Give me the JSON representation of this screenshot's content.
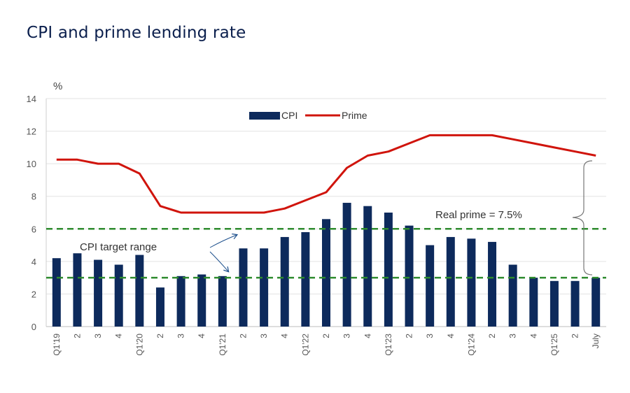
{
  "title": "CPI and prime lending rate",
  "colors": {
    "cpi": "#0d2a5c",
    "prime": "#d0140c",
    "target": "#2e8b2e",
    "grid": "#e3e3e3",
    "axis_text": "#555555",
    "annotation": "#1c4f8c"
  },
  "chart_data": {
    "type": "bar",
    "ylabel": "%",
    "ylim": [
      0,
      14
    ],
    "yticks": [
      0,
      2,
      4,
      6,
      8,
      10,
      12,
      14
    ],
    "grid": true,
    "legend_position": "top-center",
    "categories": [
      "Q1'19",
      "2",
      "3",
      "4",
      "Q1'20",
      "2",
      "3",
      "4",
      "Q1'21",
      "2",
      "3",
      "4",
      "Q1'22",
      "2",
      "3",
      "4",
      "Q1'23",
      "2",
      "3",
      "4",
      "Q1'24",
      "2",
      "3",
      "4",
      "Q1'25",
      "2",
      "July"
    ],
    "series": [
      {
        "name": "CPI",
        "type": "bar",
        "values": [
          4.2,
          4.5,
          4.1,
          3.8,
          4.4,
          2.4,
          3.1,
          3.2,
          3.1,
          4.8,
          4.8,
          5.5,
          5.8,
          6.6,
          7.6,
          7.4,
          7.0,
          6.2,
          5.0,
          5.5,
          5.4,
          5.2,
          3.8,
          3.0,
          2.8,
          2.8,
          3.0
        ]
      },
      {
        "name": "Prime",
        "type": "line",
        "values": [
          10.25,
          10.25,
          10.0,
          10.0,
          9.4,
          7.4,
          7.0,
          7.0,
          7.0,
          7.0,
          7.0,
          7.25,
          7.75,
          8.25,
          9.75,
          10.5,
          10.75,
          11.25,
          11.75,
          11.75,
          11.75,
          11.75,
          11.5,
          11.25,
          11.0,
          10.75,
          10.5
        ]
      }
    ],
    "reference_lines": [
      {
        "y": 6,
        "style": "dashed"
      },
      {
        "y": 3,
        "style": "dashed"
      }
    ],
    "annotations": {
      "target_range": "CPI target range",
      "real_prime": "Real prime = 7.5%"
    }
  }
}
